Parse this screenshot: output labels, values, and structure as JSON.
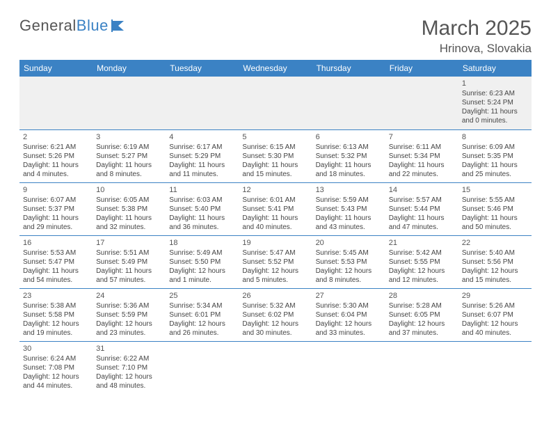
{
  "logo": {
    "text1": "General",
    "text2": "Blue"
  },
  "title": "March 2025",
  "location": "Hrinova, Slovakia",
  "colors": {
    "header_bg": "#3b82c4",
    "header_fg": "#ffffff",
    "border": "#3b82c4",
    "empty_bg": "#f0f0f0",
    "text": "#444444",
    "title_color": "#555555"
  },
  "weekdays": [
    "Sunday",
    "Monday",
    "Tuesday",
    "Wednesday",
    "Thursday",
    "Friday",
    "Saturday"
  ],
  "weeks": [
    [
      null,
      null,
      null,
      null,
      null,
      null,
      {
        "d": "1",
        "sr": "Sunrise: 6:23 AM",
        "ss": "Sunset: 5:24 PM",
        "dl1": "Daylight: 11 hours",
        "dl2": "and 0 minutes."
      }
    ],
    [
      {
        "d": "2",
        "sr": "Sunrise: 6:21 AM",
        "ss": "Sunset: 5:26 PM",
        "dl1": "Daylight: 11 hours",
        "dl2": "and 4 minutes."
      },
      {
        "d": "3",
        "sr": "Sunrise: 6:19 AM",
        "ss": "Sunset: 5:27 PM",
        "dl1": "Daylight: 11 hours",
        "dl2": "and 8 minutes."
      },
      {
        "d": "4",
        "sr": "Sunrise: 6:17 AM",
        "ss": "Sunset: 5:29 PM",
        "dl1": "Daylight: 11 hours",
        "dl2": "and 11 minutes."
      },
      {
        "d": "5",
        "sr": "Sunrise: 6:15 AM",
        "ss": "Sunset: 5:30 PM",
        "dl1": "Daylight: 11 hours",
        "dl2": "and 15 minutes."
      },
      {
        "d": "6",
        "sr": "Sunrise: 6:13 AM",
        "ss": "Sunset: 5:32 PM",
        "dl1": "Daylight: 11 hours",
        "dl2": "and 18 minutes."
      },
      {
        "d": "7",
        "sr": "Sunrise: 6:11 AM",
        "ss": "Sunset: 5:34 PM",
        "dl1": "Daylight: 11 hours",
        "dl2": "and 22 minutes."
      },
      {
        "d": "8",
        "sr": "Sunrise: 6:09 AM",
        "ss": "Sunset: 5:35 PM",
        "dl1": "Daylight: 11 hours",
        "dl2": "and 25 minutes."
      }
    ],
    [
      {
        "d": "9",
        "sr": "Sunrise: 6:07 AM",
        "ss": "Sunset: 5:37 PM",
        "dl1": "Daylight: 11 hours",
        "dl2": "and 29 minutes."
      },
      {
        "d": "10",
        "sr": "Sunrise: 6:05 AM",
        "ss": "Sunset: 5:38 PM",
        "dl1": "Daylight: 11 hours",
        "dl2": "and 32 minutes."
      },
      {
        "d": "11",
        "sr": "Sunrise: 6:03 AM",
        "ss": "Sunset: 5:40 PM",
        "dl1": "Daylight: 11 hours",
        "dl2": "and 36 minutes."
      },
      {
        "d": "12",
        "sr": "Sunrise: 6:01 AM",
        "ss": "Sunset: 5:41 PM",
        "dl1": "Daylight: 11 hours",
        "dl2": "and 40 minutes."
      },
      {
        "d": "13",
        "sr": "Sunrise: 5:59 AM",
        "ss": "Sunset: 5:43 PM",
        "dl1": "Daylight: 11 hours",
        "dl2": "and 43 minutes."
      },
      {
        "d": "14",
        "sr": "Sunrise: 5:57 AM",
        "ss": "Sunset: 5:44 PM",
        "dl1": "Daylight: 11 hours",
        "dl2": "and 47 minutes."
      },
      {
        "d": "15",
        "sr": "Sunrise: 5:55 AM",
        "ss": "Sunset: 5:46 PM",
        "dl1": "Daylight: 11 hours",
        "dl2": "and 50 minutes."
      }
    ],
    [
      {
        "d": "16",
        "sr": "Sunrise: 5:53 AM",
        "ss": "Sunset: 5:47 PM",
        "dl1": "Daylight: 11 hours",
        "dl2": "and 54 minutes."
      },
      {
        "d": "17",
        "sr": "Sunrise: 5:51 AM",
        "ss": "Sunset: 5:49 PM",
        "dl1": "Daylight: 11 hours",
        "dl2": "and 57 minutes."
      },
      {
        "d": "18",
        "sr": "Sunrise: 5:49 AM",
        "ss": "Sunset: 5:50 PM",
        "dl1": "Daylight: 12 hours",
        "dl2": "and 1 minute."
      },
      {
        "d": "19",
        "sr": "Sunrise: 5:47 AM",
        "ss": "Sunset: 5:52 PM",
        "dl1": "Daylight: 12 hours",
        "dl2": "and 5 minutes."
      },
      {
        "d": "20",
        "sr": "Sunrise: 5:45 AM",
        "ss": "Sunset: 5:53 PM",
        "dl1": "Daylight: 12 hours",
        "dl2": "and 8 minutes."
      },
      {
        "d": "21",
        "sr": "Sunrise: 5:42 AM",
        "ss": "Sunset: 5:55 PM",
        "dl1": "Daylight: 12 hours",
        "dl2": "and 12 minutes."
      },
      {
        "d": "22",
        "sr": "Sunrise: 5:40 AM",
        "ss": "Sunset: 5:56 PM",
        "dl1": "Daylight: 12 hours",
        "dl2": "and 15 minutes."
      }
    ],
    [
      {
        "d": "23",
        "sr": "Sunrise: 5:38 AM",
        "ss": "Sunset: 5:58 PM",
        "dl1": "Daylight: 12 hours",
        "dl2": "and 19 minutes."
      },
      {
        "d": "24",
        "sr": "Sunrise: 5:36 AM",
        "ss": "Sunset: 5:59 PM",
        "dl1": "Daylight: 12 hours",
        "dl2": "and 23 minutes."
      },
      {
        "d": "25",
        "sr": "Sunrise: 5:34 AM",
        "ss": "Sunset: 6:01 PM",
        "dl1": "Daylight: 12 hours",
        "dl2": "and 26 minutes."
      },
      {
        "d": "26",
        "sr": "Sunrise: 5:32 AM",
        "ss": "Sunset: 6:02 PM",
        "dl1": "Daylight: 12 hours",
        "dl2": "and 30 minutes."
      },
      {
        "d": "27",
        "sr": "Sunrise: 5:30 AM",
        "ss": "Sunset: 6:04 PM",
        "dl1": "Daylight: 12 hours",
        "dl2": "and 33 minutes."
      },
      {
        "d": "28",
        "sr": "Sunrise: 5:28 AM",
        "ss": "Sunset: 6:05 PM",
        "dl1": "Daylight: 12 hours",
        "dl2": "and 37 minutes."
      },
      {
        "d": "29",
        "sr": "Sunrise: 5:26 AM",
        "ss": "Sunset: 6:07 PM",
        "dl1": "Daylight: 12 hours",
        "dl2": "and 40 minutes."
      }
    ],
    [
      {
        "d": "30",
        "sr": "Sunrise: 6:24 AM",
        "ss": "Sunset: 7:08 PM",
        "dl1": "Daylight: 12 hours",
        "dl2": "and 44 minutes."
      },
      {
        "d": "31",
        "sr": "Sunrise: 6:22 AM",
        "ss": "Sunset: 7:10 PM",
        "dl1": "Daylight: 12 hours",
        "dl2": "and 48 minutes."
      },
      null,
      null,
      null,
      null,
      null
    ]
  ]
}
